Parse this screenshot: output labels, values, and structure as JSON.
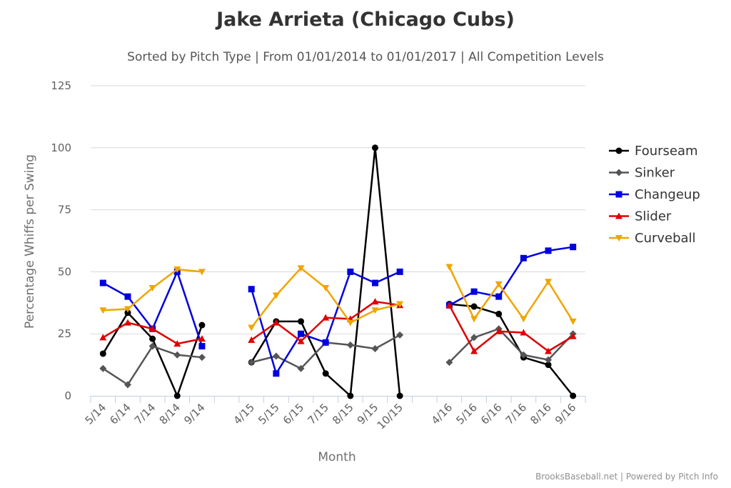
{
  "chart_data": {
    "type": "line",
    "title": "Jake Arrieta (Chicago Cubs)",
    "subtitle": "Sorted by Pitch Type | From 01/01/2014 to 01/01/2017 | All Competition Levels",
    "xlabel": "Month",
    "ylabel": "Percentage Whiffs per Swing",
    "ylim": [
      0,
      125
    ],
    "yticks": [
      "0",
      "25",
      "50",
      "75",
      "100",
      "125"
    ],
    "grid": true,
    "legend_position": "right",
    "credits": "BrooksBaseball.net | Powered by Pitch Info",
    "categories": [
      "5/14",
      "6/14",
      "7/14",
      "8/14",
      "9/14",
      "",
      "4/15",
      "5/15",
      "6/15",
      "7/15",
      "8/15",
      "9/15",
      "10/15",
      "",
      "4/16",
      "5/16",
      "6/16",
      "7/16",
      "8/16",
      "9/16"
    ],
    "series": [
      {
        "name": "Fourseam",
        "color": "#000000",
        "marker": "circle",
        "values": [
          17,
          33.5,
          23,
          0,
          28.5,
          null,
          13.5,
          30,
          30,
          9,
          0,
          100,
          0,
          null,
          37,
          36,
          33,
          15.5,
          12.5,
          0
        ]
      },
      {
        "name": "Sinker",
        "color": "#555555",
        "marker": "diamond",
        "values": [
          11,
          4.5,
          20,
          16.5,
          15.5,
          null,
          13.5,
          16,
          11,
          21.5,
          20.5,
          19,
          24.5,
          null,
          13.5,
          23.5,
          27,
          16.5,
          14.5,
          25
        ]
      },
      {
        "name": "Changeup",
        "color": "#0000dd",
        "marker": "square",
        "values": [
          45.5,
          40,
          27,
          50,
          20,
          null,
          43,
          9,
          25,
          21.5,
          50,
          45.5,
          50,
          null,
          36.5,
          42,
          40,
          55.5,
          58.5,
          60
        ]
      },
      {
        "name": "Slider",
        "color": "#dd0000",
        "marker": "triangle-up",
        "values": [
          23.5,
          29.5,
          27,
          21,
          23,
          null,
          22.5,
          29.5,
          22,
          31.5,
          31,
          38,
          36.5,
          null,
          36.5,
          18,
          26,
          25.5,
          18,
          24
        ]
      },
      {
        "name": "Curveball",
        "color": "#f0a500",
        "marker": "triangle-down",
        "values": [
          34.5,
          35,
          43.5,
          51,
          50,
          null,
          27.5,
          40.5,
          51.5,
          43.5,
          29.5,
          34.5,
          37,
          null,
          52,
          31,
          45,
          31,
          46,
          30
        ]
      }
    ]
  }
}
